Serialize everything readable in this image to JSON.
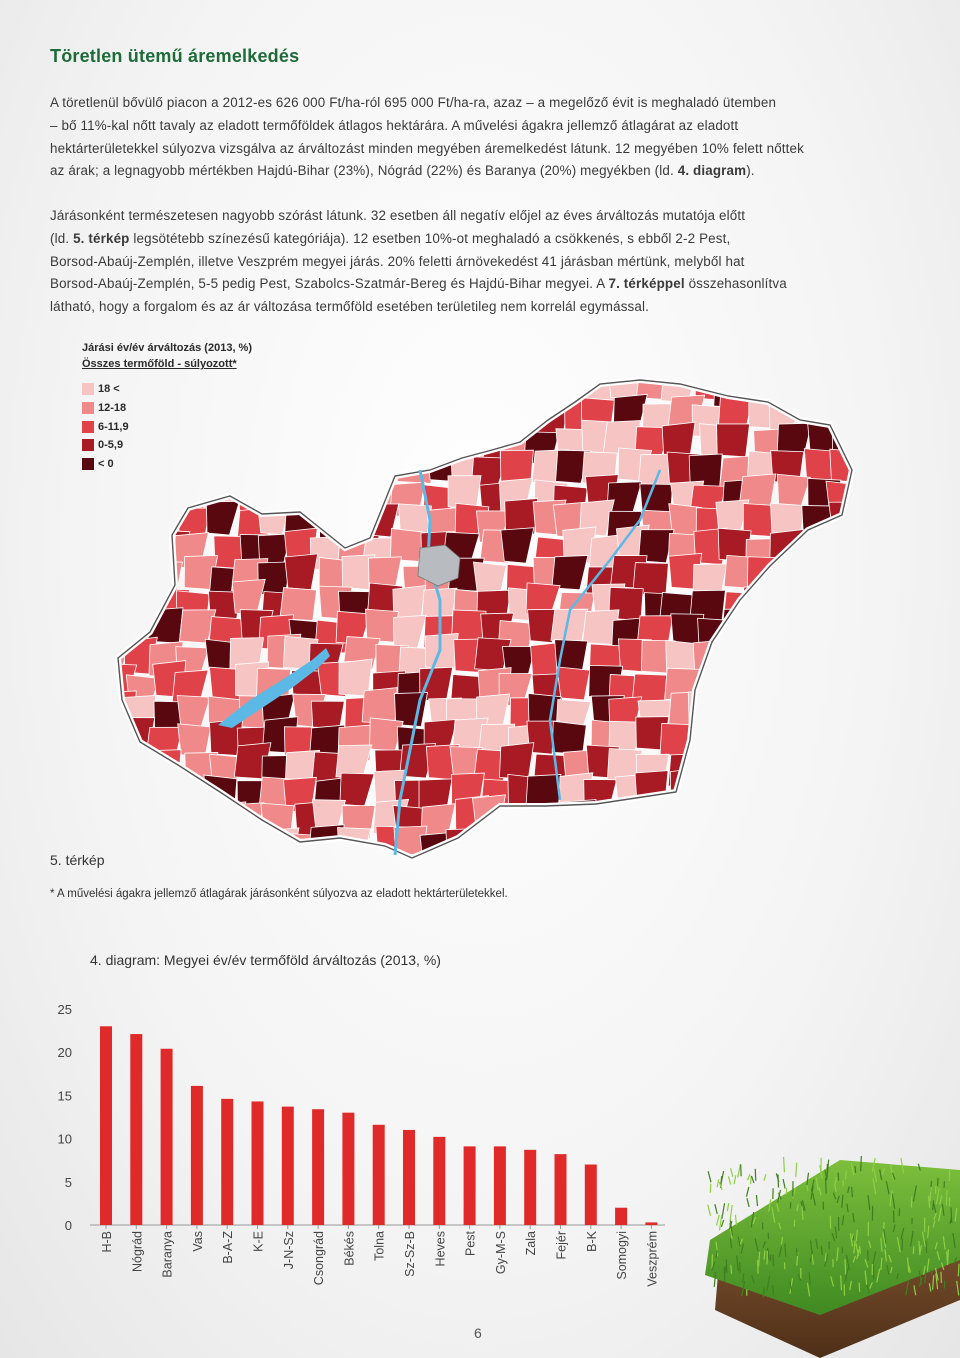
{
  "heading": "Töretlen ütemű áremelkedés",
  "paragraph1": {
    "lines": [
      "A töretlenül bővülő piacon a 2012-es 626 000 Ft/ha-ról 695 000 Ft/ha-ra, azaz – a megelőző évit is meghaladó ütemben",
      "– bő 11%-kal nőtt tavaly az eladott termőföldek átlagos hektárára. A művelési ágakra jellemző átlagárat az eladott",
      "hektárterületekkel súlyozva vizsgálva az árváltozást minden megyében áremelkedést látunk. 12 megyében 10% felett nőttek"
    ],
    "line4_pre": "az árak; a legnagyobb mértékben Hajdú-Bihar (23%), Nógrád (22%) és Baranya (20%) megyékben (ld. ",
    "line4_bold": "4. diagram",
    "line4_post": ")."
  },
  "paragraph2": {
    "line1": "Járásonként természetesen nagyobb szórást látunk. 32 esetben áll negatív előjel az éves árváltozás mutatója előtt",
    "line2_pre": "(ld. ",
    "line2_bold": "5. térkép",
    "line2_post": " legsötétebb színezésű kategóriája). 12 esetben 10%-ot meghaladó a csökkenés, s ebből 2-2 Pest,",
    "line3": "Borsod-Abaúj-Zemplén, illetve Veszprém megyei járás. 20% feletti árnövekedést 41 járásban mértünk, melyből hat",
    "line4_pre": "Borsod-Abaúj-Zemplén, 5-5 pedig Pest, Szabolcs-Szatmár-Bereg és Hajdú-Bihar megyei. A ",
    "line4_bold": "7. térképpel",
    "line4_post": " összehasonlítva",
    "line5": "látható, hogy a forgalom és az ár változása termőföld esetében területileg nem korrelál egymással."
  },
  "map": {
    "legend_title": "Járási év/év árváltozás (2013, %)",
    "legend_subtitle": "Összes termőföld - súlyozott*",
    "legend_items": [
      {
        "label": "18 <",
        "color": "#f7c4c4"
      },
      {
        "label": "12-18",
        "color": "#f08a8a"
      },
      {
        "label": "6-11,9",
        "color": "#e0424a"
      },
      {
        "label": "0-5,9",
        "color": "#a81a24"
      },
      {
        "label": "< 0",
        "color": "#5a0810"
      }
    ],
    "budapest_color": "#b8bcc0",
    "water_color": "#5cb8e4",
    "caption": "5. térkép",
    "footnote": "* A művelési ágakra jellemző átlagárak járásonként súlyozva az eladott hektárterületekkel."
  },
  "chart_title": "4. diagram: Megyei év/év termőföld árváltozás (2013, %)",
  "chart_data": {
    "type": "bar",
    "categories": [
      "H-B",
      "Nógrád",
      "Baranya",
      "Vas",
      "B-A-Z",
      "K-E",
      "J-N-Sz",
      "Csongrád",
      "Békés",
      "Tolna",
      "Sz-Sz-B",
      "Heves",
      "Pest",
      "Gy-M-S",
      "Zala",
      "Fejér",
      "B-K",
      "Somogyi",
      "Veszprém"
    ],
    "values": [
      23.0,
      22.1,
      20.4,
      16.1,
      14.6,
      14.3,
      13.7,
      13.4,
      13.0,
      11.6,
      11.0,
      10.2,
      9.1,
      9.1,
      8.7,
      8.2,
      7.0,
      2.0,
      0.3
    ],
    "yticks": [
      0,
      5,
      10,
      15,
      20,
      25
    ],
    "ylim": [
      0,
      25
    ],
    "bar_color": "#e02a2a",
    "grid": false
  },
  "page_number": "6"
}
